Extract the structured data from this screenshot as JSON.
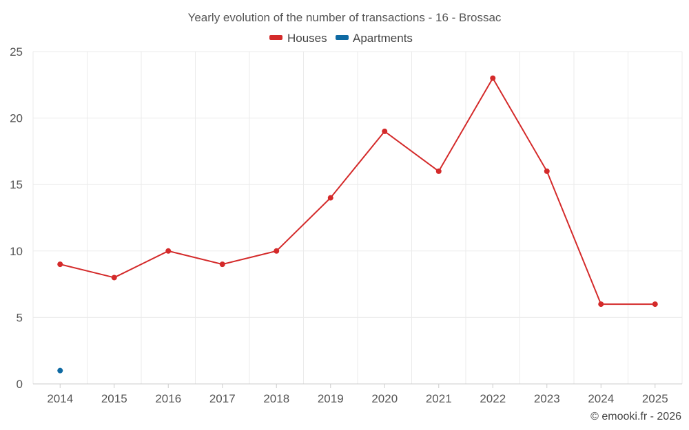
{
  "chart_data": {
    "type": "line",
    "title": "Yearly evolution of the number of transactions - 16 - Brossac",
    "categories": [
      "2014",
      "2015",
      "2016",
      "2017",
      "2018",
      "2019",
      "2020",
      "2021",
      "2022",
      "2023",
      "2024",
      "2025"
    ],
    "ylim": [
      0,
      25
    ],
    "yticks": [
      0,
      5,
      10,
      15,
      20,
      25
    ],
    "grid": true,
    "legend_position": "top-center",
    "xlabel": "",
    "ylabel": "",
    "series": [
      {
        "name": "Houses",
        "color": "#d42a2a",
        "values": [
          9,
          8,
          10,
          9,
          10,
          14,
          19,
          16,
          23,
          16,
          6,
          6
        ]
      },
      {
        "name": "Apartments",
        "color": "#0f6aa3",
        "values": [
          1,
          null,
          null,
          null,
          null,
          null,
          null,
          null,
          null,
          null,
          null,
          null
        ]
      }
    ]
  },
  "credit": "© emooki.fr - 2026"
}
